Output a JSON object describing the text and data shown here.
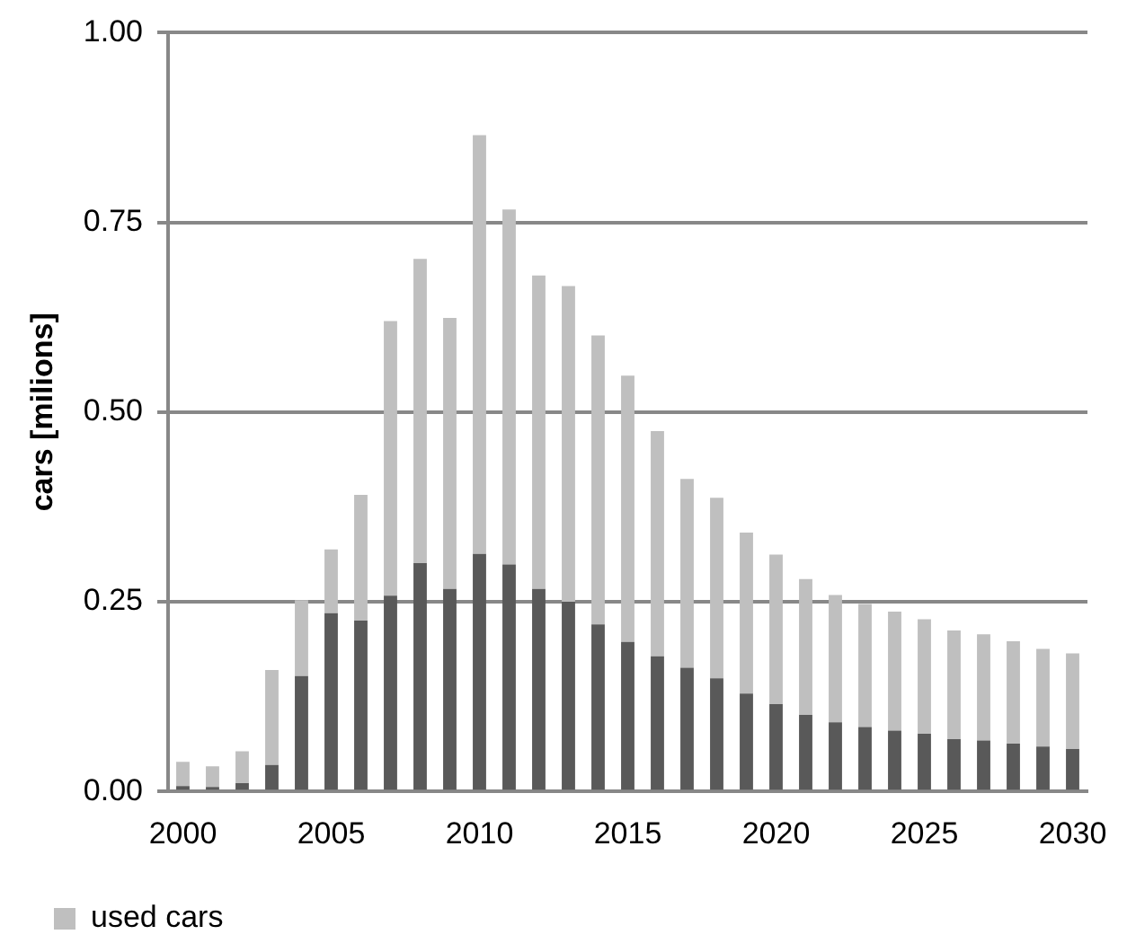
{
  "chart_data": {
    "type": "bar",
    "ylabel": "cars [milions]",
    "categories": [
      "2000",
      null,
      null,
      null,
      null,
      "2005",
      null,
      null,
      null,
      null,
      "2010",
      null,
      null,
      null,
      null,
      "2015",
      null,
      null,
      null,
      null,
      "2020",
      null,
      null,
      null,
      null,
      "2025",
      null,
      null,
      null,
      null,
      "2030"
    ],
    "stacked": true,
    "series": [
      {
        "color": "#595959",
        "values": [
          0.007,
          0.006,
          0.011,
          0.035,
          0.152,
          0.235,
          0.225,
          0.258,
          0.301,
          0.267,
          0.313,
          0.299,
          0.267,
          0.25,
          0.22,
          0.197,
          0.178,
          0.163,
          0.149,
          0.129,
          0.115,
          0.101,
          0.091,
          0.085,
          0.08,
          0.076,
          0.069,
          0.067,
          0.063,
          0.059,
          0.056
        ]
      },
      {
        "name": "used cars",
        "color": "#bfbfbf",
        "values": [
          0.032,
          0.027,
          0.042,
          0.125,
          0.1,
          0.084,
          0.166,
          0.362,
          0.401,
          0.357,
          0.552,
          0.468,
          0.413,
          0.416,
          0.381,
          0.351,
          0.297,
          0.249,
          0.238,
          0.212,
          0.197,
          0.179,
          0.168,
          0.162,
          0.157,
          0.151,
          0.143,
          0.14,
          0.135,
          0.129,
          0.126
        ]
      }
    ],
    "ylim": [
      0,
      1
    ],
    "yticks": [
      {
        "value": 0,
        "label": "0.00"
      },
      {
        "value": 0.25,
        "label": "0.25"
      },
      {
        "value": 0.5,
        "label": "0.50"
      },
      {
        "value": 0.75,
        "label": "0.75"
      },
      {
        "value": 1,
        "label": "1.00"
      }
    ],
    "grid": "y",
    "legend": "bottom left"
  }
}
